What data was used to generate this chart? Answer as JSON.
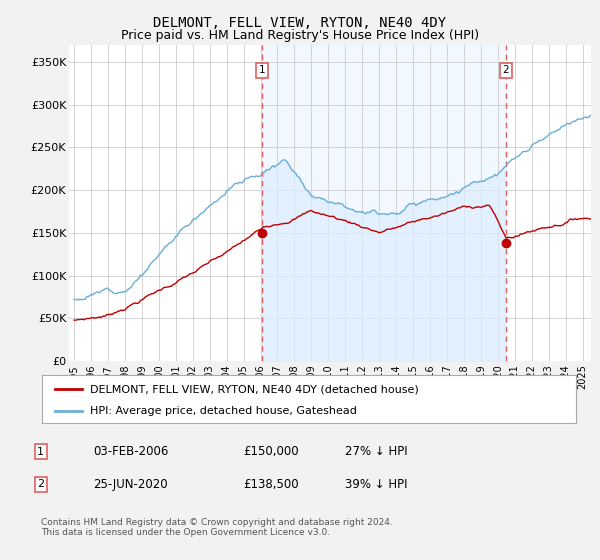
{
  "title": "DELMONT, FELL VIEW, RYTON, NE40 4DY",
  "subtitle": "Price paid vs. HM Land Registry's House Price Index (HPI)",
  "title_fontsize": 10,
  "subtitle_fontsize": 9,
  "ylabel_ticks": [
    "£0",
    "£50K",
    "£100K",
    "£150K",
    "£200K",
    "£250K",
    "£300K",
    "£350K"
  ],
  "ytick_values": [
    0,
    50000,
    100000,
    150000,
    200000,
    250000,
    300000,
    350000
  ],
  "ylim": [
    0,
    370000
  ],
  "xlim_start": 1994.7,
  "xlim_end": 2025.5,
  "hpi_color": "#6baed6",
  "hpi_fill_color": "#ddeeff",
  "price_color": "#c00000",
  "vline_color": "#e06060",
  "sale1_year": 2006.08,
  "sale1_price": 150000,
  "sale2_year": 2020.48,
  "sale2_price": 138500,
  "legend_label_price": "DELMONT, FELL VIEW, RYTON, NE40 4DY (detached house)",
  "legend_label_hpi": "HPI: Average price, detached house, Gateshead",
  "footer": "Contains HM Land Registry data © Crown copyright and database right 2024.\nThis data is licensed under the Open Government Licence v3.0.",
  "background_color": "#f2f2f2",
  "plot_bg_color": "#ffffff",
  "grid_color": "#cccccc",
  "hpi_seed": 12,
  "price_seed": 7
}
